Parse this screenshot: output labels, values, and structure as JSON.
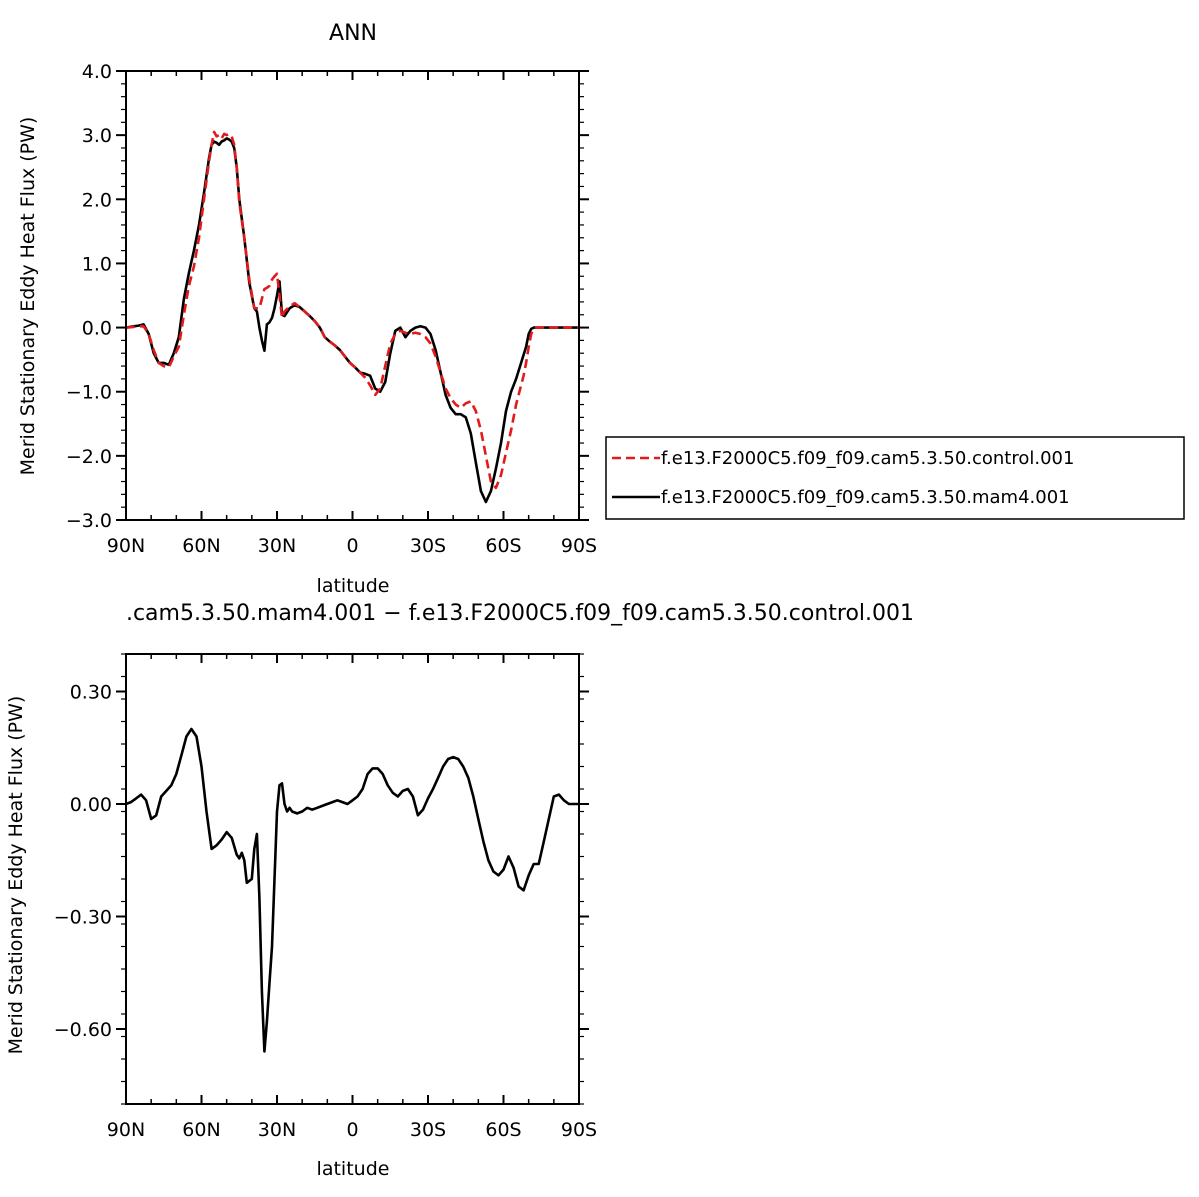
{
  "chart_data": [
    {
      "type": "line",
      "title": "ANN",
      "xlabel": "latitude",
      "ylabel": "Merid Stationary Eddy Heat Flux (PW)",
      "xlim": [
        90,
        -90
      ],
      "ylim": [
        -3.0,
        4.0
      ],
      "xticks": [
        {
          "value": 90,
          "label": "90N"
        },
        {
          "value": 60,
          "label": "60N"
        },
        {
          "value": 30,
          "label": "30N"
        },
        {
          "value": 0,
          "label": "0"
        },
        {
          "value": -30,
          "label": "30S"
        },
        {
          "value": -60,
          "label": "60S"
        },
        {
          "value": -90,
          "label": "90S"
        }
      ],
      "yticks": [
        {
          "value": 4.0,
          "label": "4.0"
        },
        {
          "value": 3.0,
          "label": "3.0"
        },
        {
          "value": 2.0,
          "label": "2.0"
        },
        {
          "value": 1.0,
          "label": "1.0"
        },
        {
          "value": 0.0,
          "label": "0.0"
        },
        {
          "value": -1.0,
          "label": "−1.0"
        },
        {
          "value": -2.0,
          "label": "−2.0"
        },
        {
          "value": -3.0,
          "label": "−3.0"
        }
      ],
      "legend": {
        "placement": "right",
        "entries": [
          {
            "name": "f.e13.F2000C5.f09_f09.cam5.3.50.control.001",
            "color": "#e31a1c",
            "dash": "dashed"
          },
          {
            "name": "f.e13.F2000C5.f09_f09.cam5.3.50.mam4.001",
            "color": "#000000",
            "dash": "solid"
          }
        ]
      },
      "series": [
        {
          "name": "f.e13.F2000C5.f09_f09.cam5.3.50.control.001",
          "color": "#e31a1c",
          "dash": "dashed",
          "x": [
            90,
            87,
            85,
            83,
            81,
            79,
            77,
            75,
            73,
            71,
            69,
            67,
            65,
            63,
            61,
            59,
            57,
            56,
            55,
            54,
            53,
            52,
            51,
            50,
            49,
            48,
            47,
            46,
            45,
            43,
            41,
            39,
            37,
            35,
            34,
            33,
            32,
            31,
            30,
            29,
            28,
            27,
            25,
            23,
            21,
            19,
            17,
            15,
            13,
            11,
            9,
            7,
            5,
            3,
            1,
            -1,
            -3,
            -5,
            -7,
            -9,
            -11,
            -13,
            -15,
            -17,
            -19,
            -21,
            -23,
            -25,
            -27,
            -29,
            -31,
            -33,
            -35,
            -37,
            -39,
            -41,
            -43,
            -45,
            -47,
            -49,
            -51,
            -53,
            -55,
            -57,
            -59,
            -61,
            -63,
            -65,
            -67,
            -68,
            -69,
            -70,
            -71,
            -72,
            -73,
            -75,
            -77,
            -79,
            -81,
            -83,
            -85,
            -87,
            -89,
            -90
          ],
          "y": [
            0.0,
            0.01,
            0.02,
            0.02,
            -0.1,
            -0.35,
            -0.55,
            -0.6,
            -0.62,
            -0.45,
            -0.3,
            0.2,
            0.65,
            0.95,
            1.4,
            2.0,
            2.6,
            2.85,
            3.05,
            2.98,
            3.0,
            2.95,
            3.02,
            3.0,
            3.02,
            2.98,
            2.85,
            2.5,
            1.95,
            1.4,
            0.75,
            0.3,
            0.3,
            0.6,
            0.62,
            0.65,
            0.75,
            0.8,
            0.84,
            0.5,
            0.15,
            0.25,
            0.33,
            0.38,
            0.32,
            0.25,
            0.18,
            0.1,
            0.0,
            -0.15,
            -0.22,
            -0.28,
            -0.35,
            -0.45,
            -0.55,
            -0.62,
            -0.7,
            -0.78,
            -0.9,
            -1.05,
            -0.95,
            -0.6,
            -0.25,
            -0.1,
            -0.05,
            -0.08,
            -0.1,
            -0.08,
            -0.1,
            -0.15,
            -0.25,
            -0.45,
            -0.7,
            -0.95,
            -1.1,
            -1.2,
            -1.25,
            -1.18,
            -1.15,
            -1.3,
            -1.6,
            -2.0,
            -2.4,
            -2.5,
            -2.3,
            -1.95,
            -1.6,
            -1.2,
            -0.9,
            -0.75,
            -0.55,
            -0.3,
            -0.1,
            -0.02,
            0.0,
            0.0,
            0.0,
            0.0,
            0.0,
            0.0,
            0.0,
            0.0,
            0.0,
            0.0
          ]
        },
        {
          "name": "f.e13.F2000C5.f09_f09.cam5.3.50.mam4.001",
          "color": "#000000",
          "dash": "solid",
          "x": [
            90,
            87,
            85,
            83,
            81,
            79,
            77,
            75,
            73,
            71,
            69,
            67,
            65,
            63,
            61,
            59,
            57,
            56,
            55,
            54,
            53,
            52,
            51,
            50,
            49,
            48,
            47,
            46,
            45,
            43,
            41,
            39,
            38,
            37,
            36,
            35,
            34,
            33,
            32,
            31,
            30,
            29,
            28,
            27,
            25,
            23,
            21,
            19,
            17,
            15,
            13,
            11,
            9,
            7,
            5,
            3,
            1,
            -1,
            -3,
            -5,
            -7,
            -9,
            -11,
            -13,
            -15,
            -17,
            -19,
            -21,
            -23,
            -25,
            -27,
            -29,
            -31,
            -33,
            -35,
            -37,
            -39,
            -41,
            -43,
            -45,
            -47,
            -49,
            -51,
            -53,
            -55,
            -57,
            -59,
            -61,
            -63,
            -65,
            -67,
            -69,
            -70,
            -71,
            -72,
            -73,
            -74,
            -75,
            -77,
            -79,
            -81,
            -83,
            -85,
            -87,
            -89,
            -90
          ],
          "y": [
            0.0,
            0.02,
            0.03,
            0.05,
            -0.1,
            -0.4,
            -0.55,
            -0.55,
            -0.58,
            -0.4,
            -0.15,
            0.45,
            0.85,
            1.2,
            1.6,
            2.1,
            2.65,
            2.85,
            2.9,
            2.88,
            2.85,
            2.9,
            2.92,
            2.95,
            2.93,
            2.9,
            2.8,
            2.5,
            2.0,
            1.4,
            0.7,
            0.3,
            0.25,
            0.0,
            -0.2,
            -0.36,
            0.05,
            0.08,
            0.15,
            0.3,
            0.5,
            0.72,
            0.2,
            0.18,
            0.3,
            0.35,
            0.32,
            0.25,
            0.18,
            0.1,
            0.0,
            -0.15,
            -0.22,
            -0.28,
            -0.35,
            -0.45,
            -0.55,
            -0.62,
            -0.7,
            -0.72,
            -0.75,
            -0.95,
            -1.0,
            -0.85,
            -0.4,
            -0.05,
            0.0,
            -0.15,
            -0.05,
            0.0,
            0.02,
            0.0,
            -0.1,
            -0.35,
            -0.7,
            -1.05,
            -1.25,
            -1.35,
            -1.35,
            -1.4,
            -1.65,
            -2.1,
            -2.55,
            -2.72,
            -2.55,
            -2.2,
            -1.8,
            -1.3,
            -1.0,
            -0.8,
            -0.55,
            -0.3,
            -0.1,
            -0.02,
            0.0,
            0.0,
            0.0,
            0.0,
            0.0,
            0.0,
            0.0,
            0.0,
            0.0,
            0.0,
            0.0,
            0.0
          ]
        }
      ]
    },
    {
      "type": "line",
      "title": ".cam5.3.50.mam4.001 − f.e13.F2000C5.f09_f09.cam5.3.50.control.001",
      "xlabel": "latitude",
      "ylabel": "Merid Stationary Eddy Heat Flux (PW)",
      "xlim": [
        90,
        -90
      ],
      "ylim": [
        -0.8,
        0.4
      ],
      "xticks": [
        {
          "value": 90,
          "label": "90N"
        },
        {
          "value": 60,
          "label": "60N"
        },
        {
          "value": 30,
          "label": "30N"
        },
        {
          "value": 0,
          "label": "0"
        },
        {
          "value": -30,
          "label": "30S"
        },
        {
          "value": -60,
          "label": "60S"
        },
        {
          "value": -90,
          "label": "90S"
        }
      ],
      "yticks": [
        {
          "value": 0.3,
          "label": "0.30"
        },
        {
          "value": 0.0,
          "label": "0.00"
        },
        {
          "value": -0.3,
          "label": "−0.30"
        },
        {
          "value": -0.6,
          "label": "−0.60"
        }
      ],
      "series": [
        {
          "color": "#000000",
          "dash": "solid",
          "x": [
            90,
            88,
            86,
            84,
            82,
            80,
            78,
            76,
            74,
            72,
            70,
            68,
            66,
            64,
            62,
            60,
            58,
            56,
            54,
            52,
            50,
            48,
            46,
            45,
            44,
            43,
            42,
            40,
            39,
            38,
            37,
            36,
            35,
            34,
            33,
            32,
            31,
            30,
            29,
            28,
            27,
            26,
            25,
            24,
            22,
            20,
            18,
            16,
            14,
            12,
            10,
            8,
            6,
            4,
            2,
            0,
            -2,
            -4,
            -6,
            -8,
            -10,
            -12,
            -14,
            -16,
            -18,
            -20,
            -22,
            -24,
            -26,
            -28,
            -30,
            -32,
            -34,
            -36,
            -38,
            -40,
            -42,
            -44,
            -46,
            -48,
            -50,
            -52,
            -54,
            -56,
            -58,
            -60,
            -62,
            -64,
            -66,
            -68,
            -70,
            -72,
            -74,
            -76,
            -78,
            -80,
            -82,
            -84,
            -86,
            -88,
            -90
          ],
          "y": [
            0.0,
            0.005,
            0.015,
            0.025,
            0.01,
            -0.04,
            -0.03,
            0.02,
            0.035,
            0.05,
            0.08,
            0.13,
            0.18,
            0.2,
            0.18,
            0.1,
            -0.02,
            -0.12,
            -0.11,
            -0.095,
            -0.075,
            -0.09,
            -0.135,
            -0.145,
            -0.13,
            -0.15,
            -0.21,
            -0.2,
            -0.12,
            -0.08,
            -0.25,
            -0.5,
            -0.66,
            -0.58,
            -0.48,
            -0.38,
            -0.2,
            -0.02,
            0.05,
            0.055,
            0.0,
            -0.02,
            -0.01,
            -0.02,
            -0.025,
            -0.02,
            -0.01,
            -0.015,
            -0.01,
            -0.005,
            0.0,
            0.005,
            0.01,
            0.005,
            0.0,
            0.01,
            0.02,
            0.04,
            0.08,
            0.095,
            0.095,
            0.08,
            0.05,
            0.03,
            0.02,
            0.035,
            0.04,
            0.02,
            -0.03,
            -0.015,
            0.015,
            0.04,
            0.07,
            0.1,
            0.12,
            0.125,
            0.12,
            0.1,
            0.07,
            0.02,
            -0.04,
            -0.1,
            -0.15,
            -0.18,
            -0.19,
            -0.175,
            -0.14,
            -0.17,
            -0.22,
            -0.23,
            -0.19,
            -0.16,
            -0.16,
            -0.1,
            -0.04,
            0.02,
            0.025,
            0.01,
            0.0,
            0.0,
            0.0
          ]
        }
      ]
    }
  ]
}
